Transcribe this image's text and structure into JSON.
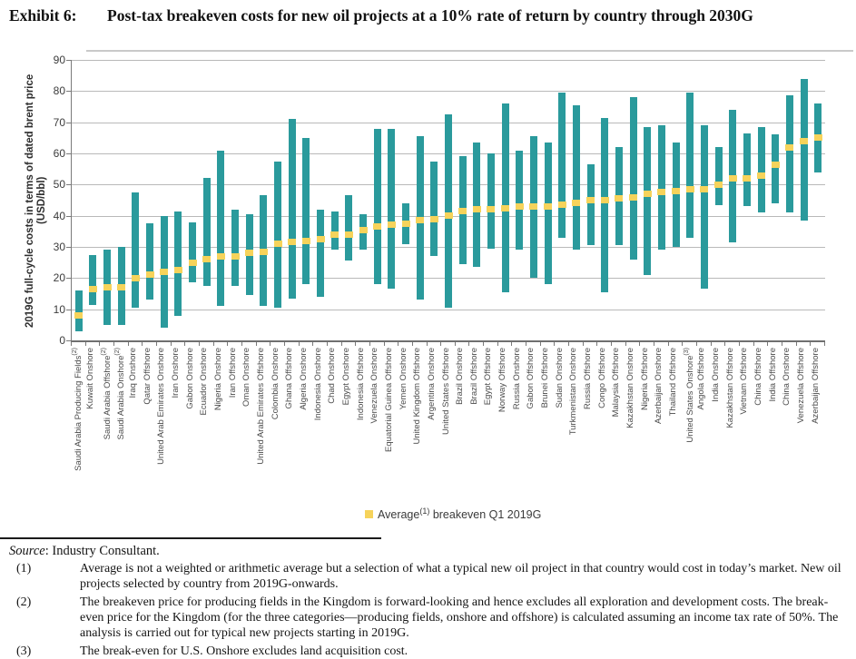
{
  "header": {
    "exhibit_label": "Exhibit 6:",
    "title": "Post-tax breakeven costs for new oil projects at a 10% rate of return by country through 2030G"
  },
  "chart_data": {
    "type": "bar",
    "subtype": "floating-range-bars-with-average-marker",
    "title": "",
    "xlabel": "",
    "ylabel": "2019G full-cycle costs in terms of dated brent price (USD/bbl)",
    "ylim": [
      0,
      90
    ],
    "yticks": [
      0,
      10,
      20,
      30,
      40,
      50,
      60,
      70,
      80,
      90
    ],
    "grid": "horizontal",
    "bar_color": "#2a9a9c",
    "marker_color": "#f6d35b",
    "values_unit": "USD/bbl",
    "values_note": "each point: low = bottom of range bar, high = top of range bar, avg = yellow average breakeven marker",
    "points": [
      {
        "label": "Saudi Arabia Producing Fields",
        "sup": "2",
        "low": 3,
        "high": 16,
        "avg": 8
      },
      {
        "label": "Kuwait Onshore",
        "sup": null,
        "low": 11.5,
        "high": 27.5,
        "avg": 16.5
      },
      {
        "label": "Saudi Arabia Offshore",
        "sup": "2",
        "low": 5,
        "high": 29,
        "avg": 17
      },
      {
        "label": "Saudi Arabia Onshore",
        "sup": "2",
        "low": 5,
        "high": 30,
        "avg": 17
      },
      {
        "label": "Iraq Onshore",
        "sup": null,
        "low": 10.5,
        "high": 47.5,
        "avg": 20
      },
      {
        "label": "Qatar Offshore",
        "sup": null,
        "low": 13,
        "high": 37.5,
        "avg": 21
      },
      {
        "label": "United Arab Emirates Onshore",
        "sup": null,
        "low": 4,
        "high": 40,
        "avg": 22
      },
      {
        "label": "Iran Onshore",
        "sup": null,
        "low": 8,
        "high": 41.5,
        "avg": 22.5
      },
      {
        "label": "Gabon Onshore",
        "sup": null,
        "low": 18.5,
        "high": 38,
        "avg": 25
      },
      {
        "label": "Ecuador Onshore",
        "sup": null,
        "low": 17.5,
        "high": 52,
        "avg": 26
      },
      {
        "label": "Nigeria Onshore",
        "sup": null,
        "low": 11,
        "high": 61,
        "avg": 27
      },
      {
        "label": "Iran Offshore",
        "sup": null,
        "low": 17.5,
        "high": 42,
        "avg": 27
      },
      {
        "label": "Oman Onshore",
        "sup": null,
        "low": 14.5,
        "high": 40.5,
        "avg": 28
      },
      {
        "label": "United Arab Emirates Offshore",
        "sup": null,
        "low": 11,
        "high": 46.5,
        "avg": 28.5
      },
      {
        "label": "Colombia Onshore",
        "sup": null,
        "low": 10.5,
        "high": 57.5,
        "avg": 31
      },
      {
        "label": "Ghana Offshore",
        "sup": null,
        "low": 13.5,
        "high": 71,
        "avg": 31.5
      },
      {
        "label": "Algeria Onshore",
        "sup": null,
        "low": 18,
        "high": 65,
        "avg": 32
      },
      {
        "label": "Indonesia Onshore",
        "sup": null,
        "low": 14,
        "high": 42,
        "avg": 32.5
      },
      {
        "label": "Chad Onshore",
        "sup": null,
        "low": 29,
        "high": 41.5,
        "avg": 34
      },
      {
        "label": "Egypt Onshore",
        "sup": null,
        "low": 25.5,
        "high": 46.5,
        "avg": 34
      },
      {
        "label": "Indonesia Offshore",
        "sup": null,
        "low": 29,
        "high": 40.5,
        "avg": 35.5
      },
      {
        "label": "Venezuela Onshore",
        "sup": null,
        "low": 18,
        "high": 68,
        "avg": 36.5
      },
      {
        "label": "Equatorial Guinea Offshore",
        "sup": null,
        "low": 16.5,
        "high": 68,
        "avg": 37
      },
      {
        "label": "Yemen Onshore",
        "sup": null,
        "low": 31,
        "high": 44,
        "avg": 37.5
      },
      {
        "label": "United Kingdom Offshore",
        "sup": null,
        "low": 13,
        "high": 65.5,
        "avg": 38.5
      },
      {
        "label": "Argentina Onshore",
        "sup": null,
        "low": 27,
        "high": 57.5,
        "avg": 39
      },
      {
        "label": "United States Offshore",
        "sup": null,
        "low": 10.5,
        "high": 72.5,
        "avg": 40
      },
      {
        "label": "Brazil Onshore",
        "sup": null,
        "low": 24.5,
        "high": 59,
        "avg": 41.5
      },
      {
        "label": "Brazil Offshore",
        "sup": null,
        "low": 23.5,
        "high": 63.5,
        "avg": 42
      },
      {
        "label": "Egypt Offshore",
        "sup": null,
        "low": 29.5,
        "high": 60,
        "avg": 42
      },
      {
        "label": "Norway Offshore",
        "sup": null,
        "low": 15.5,
        "high": 76,
        "avg": 42.5
      },
      {
        "label": "Russia Onshore",
        "sup": null,
        "low": 29,
        "high": 61,
        "avg": 43
      },
      {
        "label": "Gabon Offshore",
        "sup": null,
        "low": 20,
        "high": 65.5,
        "avg": 43
      },
      {
        "label": "Brunei Offshore",
        "sup": null,
        "low": 18,
        "high": 63.5,
        "avg": 43
      },
      {
        "label": "Sudan Onshore",
        "sup": null,
        "low": 33,
        "high": 79.5,
        "avg": 43.5
      },
      {
        "label": "Turkmenistan Onshore",
        "sup": null,
        "low": 29,
        "high": 75.5,
        "avg": 44
      },
      {
        "label": "Russia Offshore",
        "sup": null,
        "low": 30.5,
        "high": 56.5,
        "avg": 45
      },
      {
        "label": "Congo Offshore",
        "sup": null,
        "low": 15.5,
        "high": 71.5,
        "avg": 45
      },
      {
        "label": "Malaysia Offshore",
        "sup": null,
        "low": 30.5,
        "high": 62,
        "avg": 45.5
      },
      {
        "label": "Kazakhstan Onshore",
        "sup": null,
        "low": 26,
        "high": 78,
        "avg": 46
      },
      {
        "label": "Nigeria Offshore",
        "sup": null,
        "low": 21,
        "high": 68.5,
        "avg": 47
      },
      {
        "label": "Azerbaijan Onshore",
        "sup": null,
        "low": 29,
        "high": 69,
        "avg": 47.5
      },
      {
        "label": "Thailand Offshore",
        "sup": null,
        "low": 30,
        "high": 63.5,
        "avg": 48
      },
      {
        "label": "United States Onshore",
        "sup": "3",
        "low": 33,
        "high": 79.5,
        "avg": 48.5
      },
      {
        "label": "Angola Offshore",
        "sup": null,
        "low": 16.5,
        "high": 69,
        "avg": 48.5
      },
      {
        "label": "India Onshore",
        "sup": null,
        "low": 43.5,
        "high": 62,
        "avg": 50
      },
      {
        "label": "Kazakhstan Offshore",
        "sup": null,
        "low": 31.5,
        "high": 74,
        "avg": 52
      },
      {
        "label": "Vietnam Offshore",
        "sup": null,
        "low": 43,
        "high": 66.5,
        "avg": 52
      },
      {
        "label": "China Offshore",
        "sup": null,
        "low": 41,
        "high": 68.5,
        "avg": 53
      },
      {
        "label": "India Offshore",
        "sup": null,
        "low": 44,
        "high": 66,
        "avg": 56.5
      },
      {
        "label": "China Onshore",
        "sup": null,
        "low": 41,
        "high": 78.5,
        "avg": 62
      },
      {
        "label": "Venezuela Offshore",
        "sup": null,
        "low": 38.5,
        "high": 84,
        "avg": 64
      },
      {
        "label": "Azerbaijan Offshore",
        "sup": null,
        "low": 54,
        "high": 76,
        "avg": 65
      }
    ],
    "legend": {
      "position": "bottom-center",
      "prefix": "Average",
      "sup": "(1)",
      "suffix": " breakeven Q1 2019G"
    }
  },
  "footer": {
    "source_word": "Source",
    "source_rest": ": Industry Consultant.",
    "footnotes": [
      {
        "marker": "(1)",
        "text": "Average is not a weighted or arithmetic average but a selection of what a typical new oil project in that country would cost in today’s market. New oil projects selected by country from 2019G-onwards."
      },
      {
        "marker": "(2)",
        "text": "The breakeven price for producing fields in the Kingdom is forward-looking and hence excludes all exploration and development costs. The break-even price for the Kingdom (for the three categories—producing fields, onshore and offshore) is calculated assuming an income tax rate of 50%. The analysis is carried out for typical new projects starting in 2019G."
      },
      {
        "marker": "(3)",
        "text": "The break-even for U.S. Onshore excludes land acquisition cost."
      }
    ]
  }
}
